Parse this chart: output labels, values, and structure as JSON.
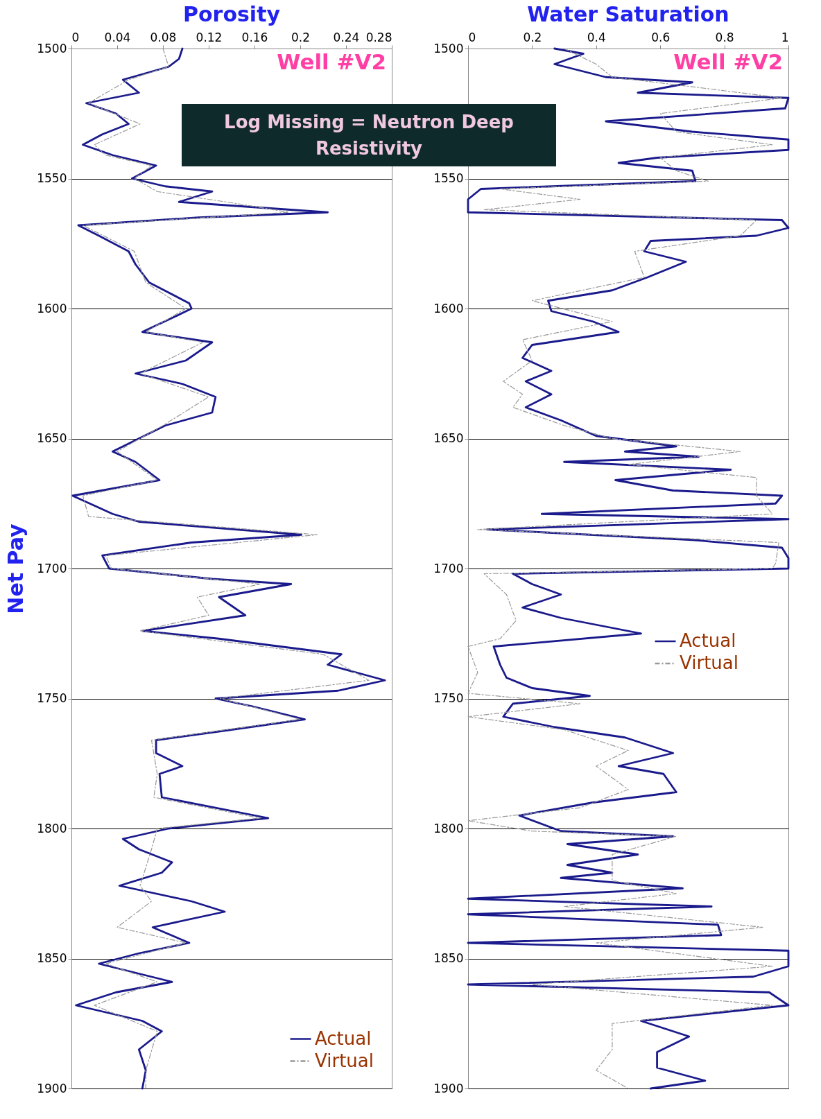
{
  "chart_data": [
    {
      "type": "line",
      "title": "Porosity",
      "ylabel": "Net Pay",
      "orientation": "horizontal",
      "xlim": [
        0,
        0.28
      ],
      "xticks": [
        0,
        0.04,
        0.08,
        0.12,
        0.16,
        0.2,
        0.24,
        0.28
      ],
      "ylim": [
        1900,
        1500
      ],
      "yticks": [
        1500,
        1550,
        1600,
        1650,
        1700,
        1750,
        1800,
        1850,
        1900
      ],
      "grid": "y",
      "legend": "bottom right",
      "annotations": [
        "Well #V2",
        "Log Missing = Neutron Deep Resistivity"
      ],
      "series": [
        {
          "name": "Actual",
          "color": "#1a1a8c",
          "line_style": "solid",
          "x": [
            1500,
            1504,
            1507,
            1512,
            1517,
            1521,
            1525,
            1529,
            1533,
            1537,
            1541,
            1545,
            1550,
            1553,
            1555,
            1559,
            1563,
            1565,
            1568,
            1572,
            1578,
            1583,
            1590,
            1598,
            1600,
            1603,
            1609,
            1613,
            1620,
            1625,
            1629,
            1634,
            1640,
            1645,
            1650,
            1655,
            1659,
            1666,
            1672,
            1679,
            1682,
            1687,
            1690,
            1695,
            1700,
            1704,
            1706,
            1711,
            1718,
            1724,
            1727,
            1733,
            1737,
            1743,
            1747,
            1750,
            1753,
            1758,
            1762,
            1766,
            1771,
            1776,
            1779,
            1788,
            1796,
            1800,
            1804,
            1808,
            1813,
            1817,
            1822,
            1828,
            1832,
            1838,
            1844,
            1848,
            1852,
            1859,
            1863,
            1868,
            1874,
            1878,
            1885,
            1893,
            1900
          ],
          "values": [
            0.097,
            0.094,
            0.085,
            0.045,
            0.059,
            0.013,
            0.039,
            0.05,
            0.027,
            0.01,
            0.036,
            0.074,
            0.053,
            0.082,
            0.123,
            0.094,
            0.224,
            0.111,
            0.006,
            0.024,
            0.05,
            0.056,
            0.068,
            0.103,
            0.105,
            0.091,
            0.062,
            0.123,
            0.1,
            0.056,
            0.097,
            0.126,
            0.123,
            0.082,
            0.059,
            0.036,
            0.056,
            0.077,
            0.001,
            0.036,
            0.059,
            0.201,
            0.105,
            0.027,
            0.033,
            0.123,
            0.192,
            0.129,
            0.152,
            0.062,
            0.129,
            0.236,
            0.224,
            0.274,
            0.233,
            0.126,
            0.158,
            0.204,
            0.14,
            0.074,
            0.074,
            0.097,
            0.077,
            0.079,
            0.172,
            0.085,
            0.045,
            0.059,
            0.088,
            0.079,
            0.042,
            0.105,
            0.134,
            0.071,
            0.103,
            0.059,
            0.024,
            0.088,
            0.039,
            0.004,
            0.062,
            0.079,
            0.059,
            0.065,
            0.062
          ]
        },
        {
          "name": "Virtual",
          "color": "#999999",
          "line_style": "dashed",
          "x": [
            1500,
            1507,
            1512,
            1521,
            1529,
            1537,
            1541,
            1545,
            1550,
            1555,
            1560,
            1563,
            1568,
            1578,
            1590,
            1600,
            1609,
            1613,
            1625,
            1634,
            1645,
            1655,
            1666,
            1672,
            1680,
            1687,
            1695,
            1700,
            1706,
            1711,
            1718,
            1724,
            1733,
            1743,
            1750,
            1758,
            1766,
            1779,
            1788,
            1796,
            1800,
            1808,
            1822,
            1828,
            1838,
            1844,
            1852,
            1859,
            1868,
            1878,
            1893,
            1900
          ],
          "values": [
            0.08,
            0.085,
            0.05,
            0.015,
            0.06,
            0.02,
            0.03,
            0.07,
            0.055,
            0.075,
            0.15,
            0.19,
            0.01,
            0.055,
            0.065,
            0.1,
            0.065,
            0.115,
            0.06,
            0.12,
            0.08,
            0.04,
            0.075,
            0.01,
            0.015,
            0.215,
            0.03,
            0.035,
            0.165,
            0.11,
            0.12,
            0.06,
            0.22,
            0.26,
            0.13,
            0.2,
            0.07,
            0.075,
            0.072,
            0.165,
            0.075,
            0.07,
            0.06,
            0.07,
            0.04,
            0.1,
            0.03,
            0.075,
            0.02,
            0.075,
            0.065,
            0.065
          ]
        }
      ]
    },
    {
      "type": "line",
      "title": "Water Saturation",
      "orientation": "horizontal",
      "xlim": [
        0,
        1
      ],
      "xticks": [
        0,
        0.2,
        0.4,
        0.6,
        0.8,
        1
      ],
      "ylim": [
        1900,
        1500
      ],
      "yticks": [
        1500,
        1550,
        1600,
        1650,
        1700,
        1750,
        1800,
        1850,
        1900
      ],
      "grid": "y",
      "legend": "right",
      "annotations": [
        "Well #V2"
      ],
      "series": [
        {
          "name": "Actual",
          "color": "#1a1a8c",
          "line_style": "solid",
          "x": [
            1500,
            1502,
            1506,
            1511,
            1513,
            1517,
            1519,
            1523,
            1528,
            1532,
            1535,
            1539,
            1542,
            1544,
            1547,
            1551,
            1554,
            1558,
            1563,
            1566,
            1569,
            1572,
            1574,
            1578,
            1582,
            1588,
            1593,
            1597,
            1601,
            1605,
            1609,
            1614,
            1619,
            1624,
            1628,
            1633,
            1638,
            1643,
            1649,
            1653,
            1655,
            1657,
            1659,
            1662,
            1666,
            1670,
            1672,
            1675,
            1679,
            1681,
            1685,
            1689,
            1692,
            1696,
            1700,
            1702,
            1706,
            1710,
            1715,
            1719,
            1725,
            1730,
            1737,
            1742,
            1746,
            1749,
            1752,
            1757,
            1761,
            1765,
            1771,
            1776,
            1779,
            1786,
            1790,
            1795,
            1801,
            1803,
            1806,
            1810,
            1814,
            1817,
            1819,
            1823,
            1827,
            1830,
            1833,
            1837,
            1841,
            1844,
            1847,
            1853,
            1857,
            1860,
            1863,
            1868,
            1874,
            1880,
            1886,
            1892,
            1897,
            1900
          ],
          "values": [
            0.27,
            0.36,
            0.27,
            0.43,
            0.7,
            0.53,
            1,
            0.99,
            0.43,
            0.7,
            1,
            1,
            0.59,
            0.47,
            0.7,
            0.71,
            0.04,
            0,
            0,
            0.98,
            1,
            0.9,
            0.57,
            0.55,
            0.68,
            0.56,
            0.45,
            0.25,
            0.26,
            0.39,
            0.47,
            0.2,
            0.17,
            0.26,
            0.18,
            0.26,
            0.18,
            0.29,
            0.4,
            0.65,
            0.49,
            0.72,
            0.3,
            0.82,
            0.46,
            0.64,
            0.98,
            0.96,
            0.23,
            1,
            0.06,
            0.7,
            0.98,
            1,
            1,
            0.14,
            0.2,
            0.29,
            0.17,
            0.29,
            0.54,
            0.08,
            0.1,
            0.12,
            0.2,
            0.38,
            0.14,
            0.11,
            0.27,
            0.49,
            0.64,
            0.47,
            0.61,
            0.65,
            0.39,
            0.16,
            0.29,
            0.64,
            0.31,
            0.53,
            0.31,
            0.45,
            0.29,
            0.67,
            0,
            0.76,
            0,
            0.78,
            0.79,
            0,
            1,
            1,
            0.89,
            0,
            0.94,
            1,
            0.54,
            0.69,
            0.59,
            0.59,
            0.74,
            0.57
          ]
        },
        {
          "name": "Virtual",
          "color": "#999999",
          "line_style": "dashed",
          "x": [
            1500,
            1506,
            1511,
            1515,
            1519,
            1525,
            1532,
            1537,
            1542,
            1547,
            1551,
            1554,
            1558,
            1562,
            1566,
            1572,
            1578,
            1588,
            1597,
            1605,
            1612,
            1620,
            1628,
            1633,
            1638,
            1645,
            1650,
            1655,
            1660,
            1665,
            1672,
            1679,
            1685,
            1690,
            1698,
            1700,
            1702,
            1710,
            1720,
            1727,
            1730,
            1740,
            1748,
            1752,
            1757,
            1762,
            1770,
            1776,
            1785,
            1792,
            1797,
            1801,
            1803,
            1810,
            1820,
            1825,
            1830,
            1838,
            1844,
            1853,
            1860,
            1868,
            1875,
            1885,
            1893,
            1900
          ],
          "values": [
            0.3,
            0.4,
            0.45,
            0.72,
            0.98,
            0.6,
            0.65,
            0.95,
            0.6,
            0.65,
            0.75,
            0.1,
            0.35,
            0.05,
            0.9,
            0.85,
            0.52,
            0.55,
            0.2,
            0.45,
            0.17,
            0.2,
            0.11,
            0.17,
            0.14,
            0.3,
            0.45,
            0.85,
            0.5,
            0.9,
            0.9,
            0.95,
            0.03,
            0.97,
            0.96,
            0.95,
            0.05,
            0.12,
            0.15,
            0.1,
            0,
            0.03,
            0,
            0.35,
            0,
            0.3,
            0.5,
            0.4,
            0.5,
            0.35,
            0,
            0.2,
            0.65,
            0.45,
            0.45,
            0.65,
            0.3,
            0.92,
            0.4,
            0.95,
            0.2,
            0.95,
            0.45,
            0.45,
            0.4,
            0.5
          ]
        }
      ]
    }
  ]
}
